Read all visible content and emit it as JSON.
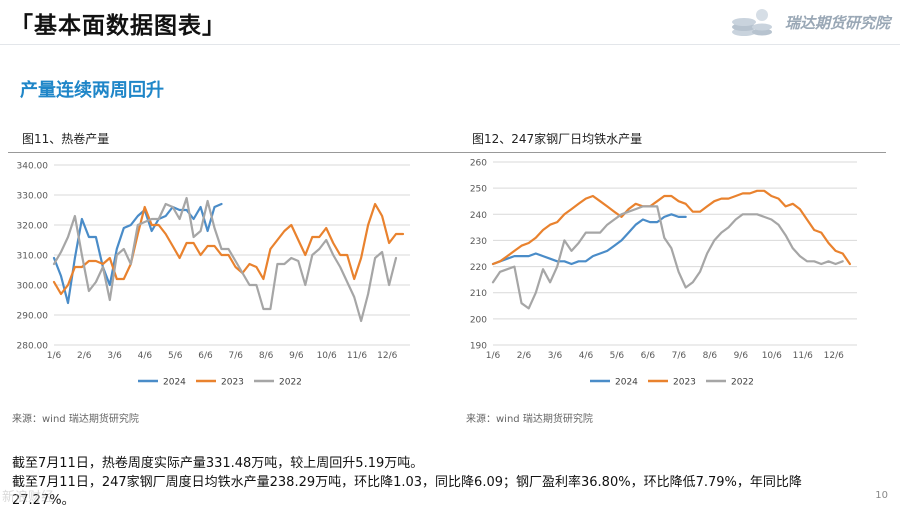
{
  "header": {
    "title": "「基本面数据图表」",
    "brand": "瑞达期货研究院"
  },
  "section": {
    "subtitle": "产量连续两周回升"
  },
  "charts": [
    {
      "caption": "图11、热卷产量",
      "source": "来源：wind   瑞达期货研究院"
    },
    {
      "caption": "图12、247家钢厂日均铁水产量",
      "source": "来源：wind   瑞达期货研究院"
    }
  ],
  "notes": [
    "截至7月11日，热卷周度实际产量331.48万吨，较上周回升5.19万吨。",
    "截至7月11日，247家钢厂周度日均铁水产量238.29万吨，环比降1.03，同比降6.09；钢厂盈利率36.80%，环比降低7.79%，年同比降",
    "27.27%。"
  ],
  "footer": {
    "page": "10",
    "watermark": "新浪财经"
  },
  "colors": {
    "y2024": "#4a8cc8",
    "y2023": "#e9822e",
    "y2022": "#a6a6a6"
  },
  "chart_data": [
    {
      "type": "line",
      "title": "图11、热卷产量",
      "xlabel": "",
      "ylabel": "",
      "x_ticks": [
        "1/6",
        "2/6",
        "3/6",
        "4/6",
        "5/6",
        "6/6",
        "7/6",
        "8/6",
        "9/6",
        "10/6",
        "11/6",
        "12/6"
      ],
      "y_ticks": [
        "280.00",
        "290.00",
        "300.00",
        "310.00",
        "320.00",
        "330.00",
        "340.00"
      ],
      "ylim": [
        280,
        340
      ],
      "x_range_weeks": [
        0,
        51
      ],
      "series": [
        {
          "name": "2024",
          "color": "#4a8cc8",
          "start": 0,
          "values": [
            309,
            303,
            294,
            309,
            322,
            316,
            316,
            306,
            300,
            312,
            319,
            320,
            323,
            325,
            318,
            322,
            323,
            326,
            325,
            325,
            322,
            326,
            318,
            326,
            327
          ]
        },
        {
          "name": "2023",
          "color": "#e9822e",
          "start": 0,
          "values": [
            301,
            297,
            300,
            306,
            306,
            308,
            308,
            307,
            309,
            302,
            302,
            307,
            317,
            326,
            320,
            320,
            317,
            313,
            309,
            314,
            314,
            310,
            313,
            313,
            310,
            310,
            306,
            304,
            307,
            306,
            302,
            312,
            315,
            318,
            320,
            315,
            310,
            316,
            316,
            319,
            314,
            310,
            310,
            302,
            309,
            320,
            327,
            323,
            314,
            317,
            317
          ]
        },
        {
          "name": "2022",
          "color": "#a6a6a6",
          "start": 0,
          "values": [
            307,
            311,
            316,
            323,
            310,
            298,
            301,
            306,
            295,
            310,
            312,
            307,
            320,
            321,
            322,
            322,
            327,
            326,
            322,
            329,
            316,
            318,
            328,
            319,
            312,
            312,
            308,
            304,
            300,
            300,
            292,
            292,
            307,
            307,
            309,
            308,
            300,
            310,
            312,
            315,
            310,
            306,
            301,
            296,
            288,
            297,
            309,
            311,
            300,
            309
          ]
        }
      ]
    },
    {
      "type": "line",
      "title": "图12、247家钢厂日均铁水产量",
      "xlabel": "",
      "ylabel": "",
      "x_ticks": [
        "1/6",
        "2/6",
        "3/6",
        "4/6",
        "5/6",
        "6/6",
        "7/6",
        "8/6",
        "9/6",
        "10/6",
        "11/6",
        "12/6"
      ],
      "y_ticks": [
        "190",
        "200",
        "210",
        "220",
        "230",
        "240",
        "250",
        "260"
      ],
      "ylim": [
        190,
        260
      ],
      "x_range_weeks": [
        0,
        51
      ],
      "series": [
        {
          "name": "2024",
          "color": "#4a8cc8",
          "start": 0,
          "values": [
            221,
            222,
            223,
            224,
            224,
            224,
            225,
            224,
            223,
            222,
            222,
            221,
            222,
            222,
            224,
            225,
            226,
            228,
            230,
            233,
            236,
            238,
            237,
            237,
            239,
            240,
            239,
            239
          ]
        },
        {
          "name": "2023",
          "color": "#e9822e",
          "start": 0,
          "values": [
            221,
            222,
            224,
            226,
            228,
            229,
            231,
            234,
            236,
            237,
            240,
            242,
            244,
            246,
            247,
            245,
            243,
            241,
            239,
            242,
            244,
            243,
            243,
            245,
            247,
            247,
            245,
            244,
            241,
            241,
            243,
            245,
            246,
            246,
            247,
            248,
            248,
            249,
            249,
            247,
            246,
            243,
            244,
            242,
            238,
            234,
            233,
            229,
            226,
            225,
            221
          ]
        },
        {
          "name": "2022",
          "color": "#a6a6a6",
          "start": 0,
          "values": [
            214,
            218,
            219,
            220,
            206,
            204,
            210,
            219,
            214,
            220,
            230,
            226,
            229,
            233,
            233,
            233,
            236,
            238,
            240,
            241,
            242,
            243,
            243,
            243,
            231,
            227,
            218,
            212,
            214,
            218,
            225,
            230,
            233,
            235,
            238,
            240,
            240,
            240,
            239,
            238,
            236,
            232,
            227,
            224,
            222,
            222,
            221,
            222,
            221,
            222
          ]
        }
      ]
    }
  ]
}
